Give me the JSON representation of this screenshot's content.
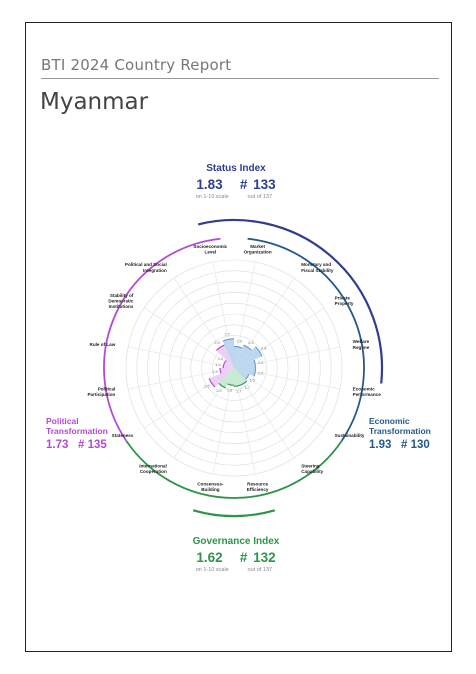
{
  "header": {
    "report_title": "BTI 2024 Country Report",
    "country": "Myanmar"
  },
  "status_index": {
    "name": "Status Index",
    "score": "1.83",
    "rank": "# 133",
    "scale_note": "on 1-10 scale",
    "rank_note": "out of 137"
  },
  "governance_index": {
    "name": "Governance Index",
    "score": "1.62",
    "rank": "# 132",
    "scale_note": "on 1-10 scale",
    "rank_note": "out of 137"
  },
  "political_transformation": {
    "line1": "Political",
    "line2": "Transformation",
    "score": "1.73",
    "rank": "# 135"
  },
  "economic_transformation": {
    "line1": "Economic",
    "line2": "Transformation",
    "score": "1.93",
    "rank": "# 130"
  },
  "colors": {
    "status": "#2f3e8f",
    "political": "#b44ad6",
    "economic": "#245a8c",
    "governance": "#2e9449"
  },
  "chart_data": {
    "type": "radar",
    "scale": [
      0,
      10
    ],
    "criteria": [
      {
        "label": [
          "Market",
          "Organization"
        ],
        "value": 2.0,
        "group": "economic"
      },
      {
        "label": [
          "Monetary and",
          "Fiscal Stability"
        ],
        "value": 2.3,
        "group": "economic"
      },
      {
        "label": [
          "Private",
          "Property"
        ],
        "value": 2.8,
        "group": "economic"
      },
      {
        "label": [
          "Welfare",
          "Regime"
        ],
        "value": 2.0,
        "group": "economic"
      },
      {
        "label": [
          "Economic",
          "Performance"
        ],
        "value": 2.0,
        "group": "economic"
      },
      {
        "label": [
          "Sustainability"
        ],
        "value": 1.5,
        "group": "economic"
      },
      {
        "label": [
          "Steering",
          "Capability"
        ],
        "value": 1.7,
        "group": "governance"
      },
      {
        "label": [
          "Resource",
          "Efficiency"
        ],
        "value": 1.7,
        "group": "governance"
      },
      {
        "label": [
          "Consensus-",
          "Building"
        ],
        "value": 1.6,
        "group": "governance"
      },
      {
        "label": [
          "International",
          "Cooperation"
        ],
        "value": 2.0,
        "group": "governance"
      },
      {
        "label": [
          "Stateness"
        ],
        "value": 2.5,
        "group": "political"
      },
      {
        "label": [
          "Political",
          "Participation"
        ],
        "value": 1.3,
        "group": "political"
      },
      {
        "label": [
          "Rule of Law"
        ],
        "value": 1.0,
        "group": "political"
      },
      {
        "label": [
          "Stability of",
          "Democratic",
          "Institutions"
        ],
        "value": 1.0,
        "group": "political"
      },
      {
        "label": [
          "Political and Social",
          "Integration"
        ],
        "value": 2.3,
        "group": "political"
      },
      {
        "label": [
          "Socioeconomic",
          "Level"
        ],
        "value": 2.7,
        "group": "economic"
      }
    ]
  }
}
